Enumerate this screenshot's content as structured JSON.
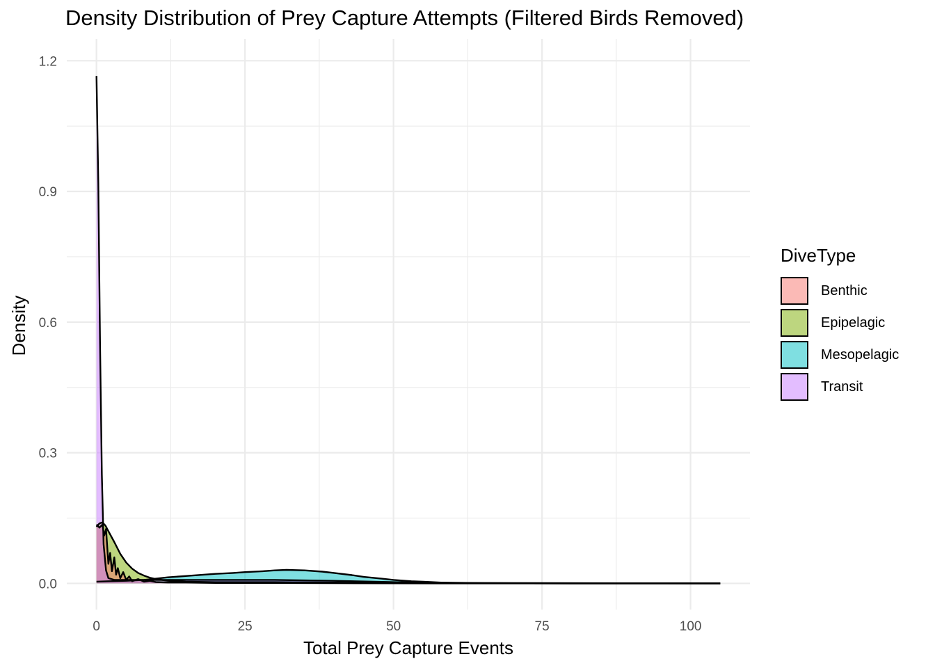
{
  "chart_data": {
    "type": "area",
    "subtype": "density",
    "title": "Density Distribution of Prey Capture Attempts (Filtered Birds Removed)",
    "xlabel": "Total Prey Capture Events",
    "ylabel": "Density",
    "xlim": [
      -5,
      110
    ],
    "ylim": [
      -0.06,
      1.25
    ],
    "x_ticks": [
      0,
      25,
      50,
      75,
      100
    ],
    "x_tick_labels": [
      "0",
      "25",
      "50",
      "75",
      "100"
    ],
    "y_ticks": [
      0,
      0.3,
      0.6,
      0.9,
      1.2
    ],
    "y_tick_labels": [
      "0.0",
      "0.3",
      "0.6",
      "0.9",
      "1.2"
    ],
    "grid": true,
    "legend_title": "DiveType",
    "legend_position": "right",
    "series": [
      {
        "name": "Mesopelagic",
        "color": "#00BFC4",
        "x": [
          0,
          2,
          5,
          8,
          10,
          12,
          15,
          18,
          20,
          23,
          25,
          28,
          30,
          32,
          35,
          38,
          40,
          43,
          45,
          48,
          50,
          53,
          55,
          58,
          60,
          65,
          70,
          80,
          90,
          105
        ],
        "y": [
          0.004,
          0.005,
          0.006,
          0.008,
          0.011,
          0.014,
          0.017,
          0.02,
          0.022,
          0.024,
          0.026,
          0.028,
          0.03,
          0.031,
          0.03,
          0.027,
          0.024,
          0.019,
          0.015,
          0.011,
          0.008,
          0.005,
          0.004,
          0.002,
          0.0015,
          0.0008,
          0.0004,
          0.0001,
          0.0,
          0.0
        ]
      },
      {
        "name": "Epipelagic",
        "color": "#7CAE00",
        "x": [
          0,
          0.5,
          1,
          1.5,
          2,
          3,
          4,
          5,
          6,
          7,
          8,
          9,
          10,
          12,
          15,
          20,
          30,
          40,
          50,
          60,
          70,
          80,
          90,
          105
        ],
        "y": [
          0.13,
          0.138,
          0.14,
          0.133,
          0.12,
          0.095,
          0.068,
          0.048,
          0.034,
          0.024,
          0.018,
          0.013,
          0.01,
          0.006,
          0.004,
          0.003,
          0.003,
          0.002,
          0.001,
          0.0005,
          0.0002,
          0.0001,
          0.0,
          0.0
        ]
      },
      {
        "name": "Benthic",
        "color": "#F8766D",
        "x": [
          0,
          0.5,
          1,
          1.3,
          1.6,
          2,
          2.3,
          2.6,
          3,
          3.3,
          3.6,
          4,
          4.5,
          5,
          5.5,
          6,
          7,
          8,
          9,
          10,
          12,
          15,
          20,
          30,
          40,
          50,
          60,
          105
        ],
        "y": [
          0.135,
          0.128,
          0.135,
          0.11,
          0.125,
          0.045,
          0.07,
          0.028,
          0.06,
          0.02,
          0.035,
          0.012,
          0.026,
          0.008,
          0.016,
          0.005,
          0.01,
          0.004,
          0.006,
          0.003,
          0.002,
          0.002,
          0.001,
          0.001,
          0.0005,
          0.0003,
          0.0001,
          0.0
        ]
      },
      {
        "name": "Transit",
        "color": "#C77CFF",
        "x": [
          0,
          0.3,
          0.6,
          0.9,
          1.2,
          1.6,
          2,
          3,
          5,
          10,
          20,
          30,
          40,
          50,
          60,
          105
        ],
        "y": [
          1.165,
          0.92,
          0.55,
          0.25,
          0.09,
          0.03,
          0.012,
          0.008,
          0.008,
          0.008,
          0.008,
          0.008,
          0.006,
          0.003,
          0.001,
          0.0
        ]
      }
    ]
  }
}
